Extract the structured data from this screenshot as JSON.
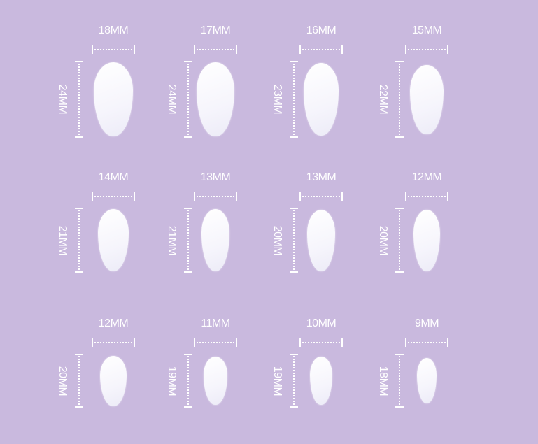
{
  "background_color": "#c9b9de",
  "nails": [
    {
      "width_label": "18MM",
      "length_label": "24MM",
      "w": 18,
      "h": 24
    },
    {
      "width_label": "17MM",
      "length_label": "24MM",
      "w": 17,
      "h": 24
    },
    {
      "width_label": "16MM",
      "length_label": "23MM",
      "w": 16,
      "h": 23
    },
    {
      "width_label": "15MM",
      "length_label": "22MM",
      "w": 15,
      "h": 22
    },
    {
      "width_label": "14MM",
      "length_label": "21MM",
      "w": 14,
      "h": 21
    },
    {
      "width_label": "13MM",
      "length_label": "21MM",
      "w": 13,
      "h": 21
    },
    {
      "width_label": "13MM",
      "length_label": "20MM",
      "w": 13,
      "h": 20
    },
    {
      "width_label": "12MM",
      "length_label": "20MM",
      "w": 12,
      "h": 20
    },
    {
      "width_label": "12MM",
      "length_label": "20MM",
      "w": 12,
      "h": 20
    },
    {
      "width_label": "11MM",
      "length_label": "19MM",
      "w": 11,
      "h": 19
    },
    {
      "width_label": "10MM",
      "length_label": "19MM",
      "w": 10,
      "h": 19
    },
    {
      "width_label": "9MM",
      "length_label": "18MM",
      "w": 9,
      "h": 18
    }
  ]
}
